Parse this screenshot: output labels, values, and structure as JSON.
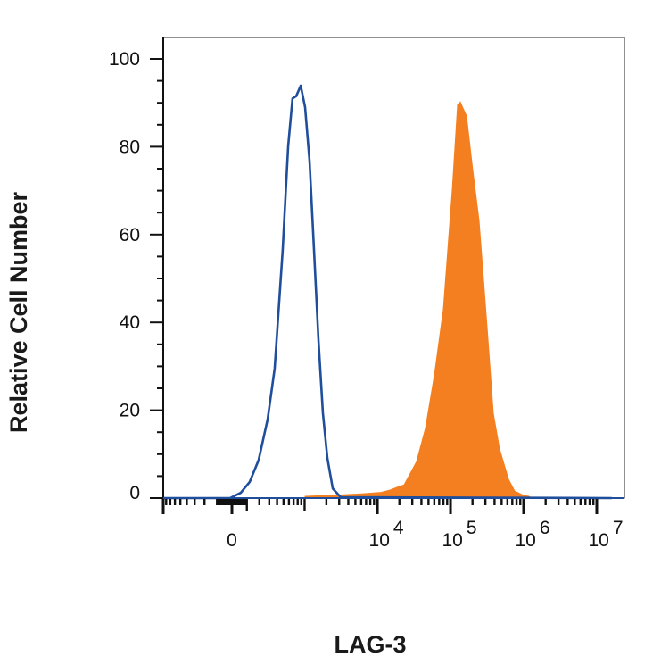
{
  "chart_data": {
    "type": "area",
    "title": "",
    "xlabel": "LAG-3",
    "ylabel": "Relative Cell Number",
    "x_scale": "biexponential",
    "xlim": [
      -900,
      16000000
    ],
    "ylim": [
      0,
      105
    ],
    "grid": false,
    "y_ticks": [
      {
        "value": 0,
        "label": "0"
      },
      {
        "value": 20,
        "label": "20"
      },
      {
        "value": 40,
        "label": "40"
      },
      {
        "value": 60,
        "label": "60"
      },
      {
        "value": 80,
        "label": "80"
      },
      {
        "value": 100,
        "label": "100"
      }
    ],
    "x_ticks": [
      {
        "value": 0,
        "base": "0",
        "exp": ""
      },
      {
        "value": 10000,
        "base": "10",
        "exp": "4"
      },
      {
        "value": 100000,
        "base": "10",
        "exp": "5"
      },
      {
        "value": 1000000,
        "base": "10",
        "exp": "6"
      },
      {
        "value": 10000000,
        "base": "10",
        "exp": "7"
      }
    ],
    "series": [
      {
        "style": "outline",
        "color": "#1f4e9c",
        "x": [
          -900,
          -12,
          58,
          121,
          194,
          282,
          367,
          486,
          584,
          676,
          761,
          881,
          1017,
          1172,
          1351,
          1558,
          1794,
          2066,
          2446,
          3153,
          16000000
        ],
        "y": [
          0,
          0,
          1.2,
          3.7,
          8.7,
          17.9,
          29.5,
          56.5,
          80,
          91,
          91.5,
          93.9,
          89,
          76.8,
          56.5,
          36,
          19.3,
          9.1,
          2.2,
          0.2,
          0
        ]
      },
      {
        "style": "filled",
        "color": "#f47f20",
        "x": [
          1017,
          1018,
          2981,
          6369,
          11170,
          14800,
          19600,
          23190,
          34340,
          45450,
          60190,
          79700,
          105600,
          124900,
          135700,
          165400,
          201300,
          245200,
          282100,
          324700,
          384200,
          467800,
          619300,
          753600,
          997700,
          1180000,
          1284000
        ],
        "y": [
          0,
          0.4,
          0.7,
          1.0,
          1.3,
          1.8,
          2.6,
          3.0,
          8.3,
          15.9,
          28,
          42.9,
          70.1,
          89.6,
          90.2,
          87,
          74.8,
          63.2,
          49.8,
          36.2,
          19.3,
          11.2,
          4.3,
          1.6,
          0.6,
          0.4,
          0
        ]
      }
    ]
  }
}
